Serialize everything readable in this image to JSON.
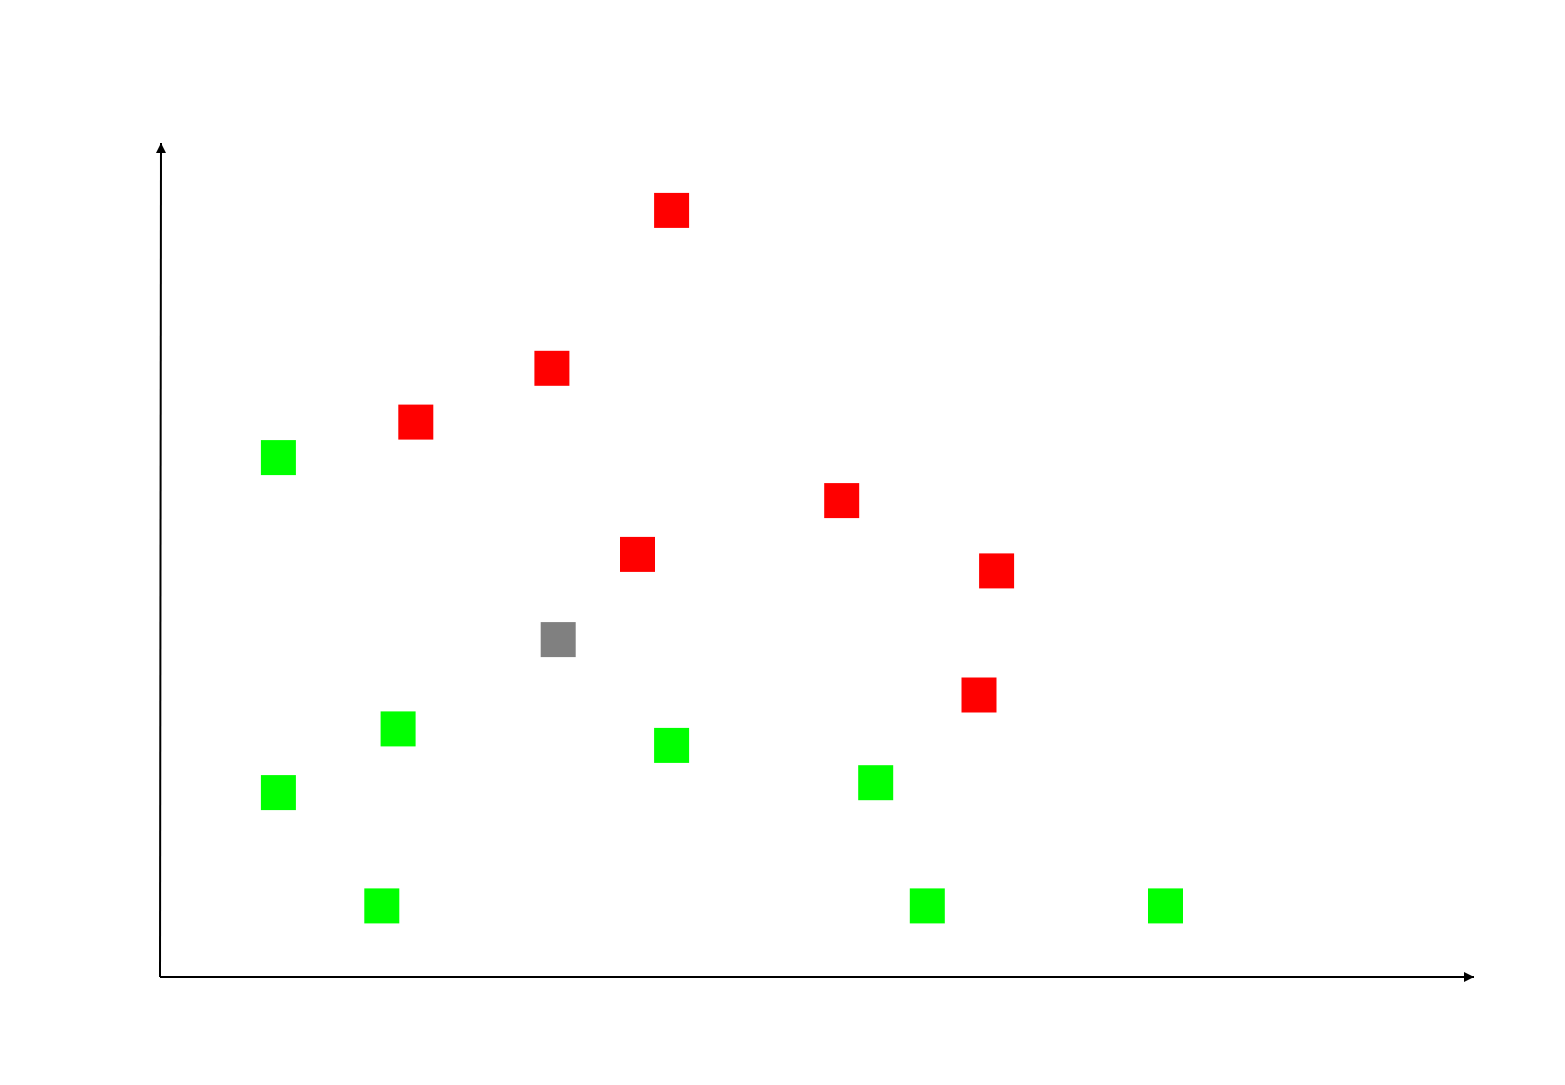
{
  "chart_data": {
    "type": "scatter",
    "title": "",
    "xlabel": "",
    "ylabel": "",
    "xlim": [
      0,
      100
    ],
    "ylim": [
      0,
      100
    ],
    "grid": false,
    "series": [
      {
        "color": "#ff0000",
        "points": [
          {
            "x": 40.6,
            "y": 92.7
          },
          {
            "x": 31.1,
            "y": 73.6
          },
          {
            "x": 20.3,
            "y": 67.1
          },
          {
            "x": 54.1,
            "y": 57.6
          },
          {
            "x": 37.9,
            "y": 51.1
          },
          {
            "x": 66.4,
            "y": 49.1
          },
          {
            "x": 65.0,
            "y": 34.1
          }
        ]
      },
      {
        "color": "#00ff00",
        "points": [
          {
            "x": 9.4,
            "y": 62.8
          },
          {
            "x": 18.9,
            "y": 30.0
          },
          {
            "x": 40.6,
            "y": 28.0
          },
          {
            "x": 56.8,
            "y": 23.5
          },
          {
            "x": 9.4,
            "y": 22.3
          },
          {
            "x": 17.6,
            "y": 8.6
          },
          {
            "x": 60.9,
            "y": 8.6
          },
          {
            "x": 79.8,
            "y": 8.6
          }
        ]
      },
      {
        "color": "#808080",
        "points": [
          {
            "x": 31.6,
            "y": 40.8
          }
        ]
      }
    ]
  }
}
